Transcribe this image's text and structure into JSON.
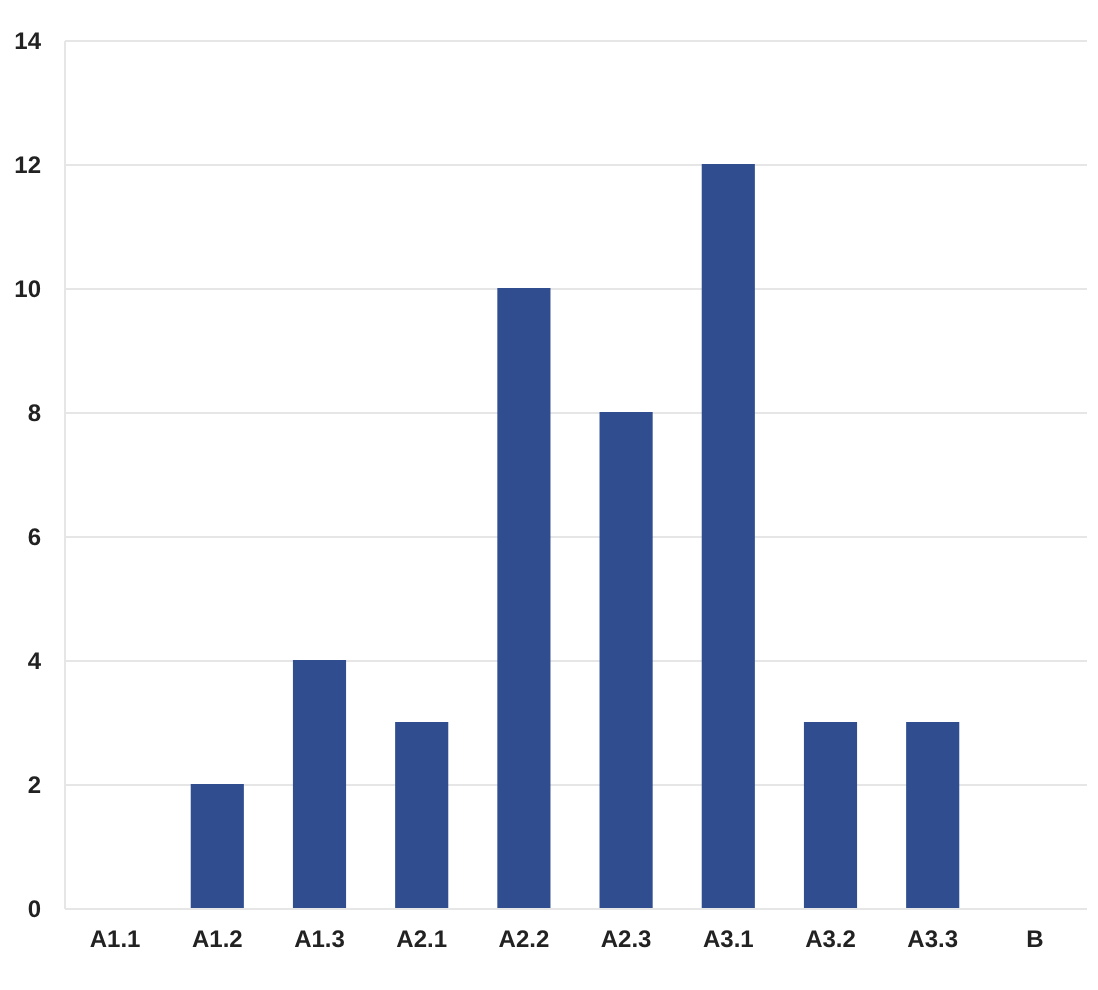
{
  "chart_data": {
    "type": "bar",
    "categories": [
      "A1.1",
      "A1.2",
      "A1.3",
      "A2.1",
      "A2.2",
      "A2.3",
      "A3.1",
      "A3.2",
      "A3.3",
      "B"
    ],
    "values": [
      0,
      2,
      4,
      3,
      10,
      8,
      12,
      3,
      3,
      0
    ],
    "color": "#2f4d8f",
    "ylim": [
      0,
      14
    ],
    "yticks": [
      0,
      2,
      4,
      6,
      8,
      10,
      12,
      14
    ],
    "grid": "y"
  }
}
